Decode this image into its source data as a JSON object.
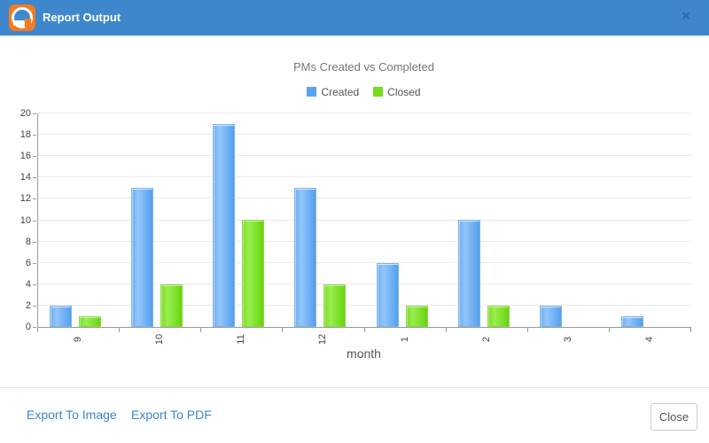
{
  "window": {
    "title": "Report Output",
    "close_glyph": "×",
    "header_color": "#3e87cc",
    "logo_color": "#f47b20"
  },
  "chart_data": {
    "type": "bar",
    "title": "PMs Created vs Completed",
    "xlabel": "month",
    "ylabel": "",
    "categories": [
      "9",
      "10",
      "11",
      "12",
      "1",
      "2",
      "3",
      "4"
    ],
    "series": [
      {
        "name": "Created",
        "color": "#5ba4f1",
        "values": [
          2,
          13,
          19,
          13,
          6,
          10,
          2,
          1
        ]
      },
      {
        "name": "Closed",
        "color": "#77dd1c",
        "values": [
          1,
          4,
          10,
          4,
          2,
          2,
          0,
          0
        ]
      }
    ],
    "ylim": [
      0,
      20
    ],
    "yticks": [
      0,
      2,
      4,
      6,
      8,
      10,
      12,
      14,
      16,
      18,
      20
    ],
    "grid": true,
    "legend_position": "top"
  },
  "footer": {
    "export_image_label": "Export To Image",
    "export_pdf_label": "Export To PDF",
    "close_label": "Close",
    "link_color": "#3e86c8"
  }
}
